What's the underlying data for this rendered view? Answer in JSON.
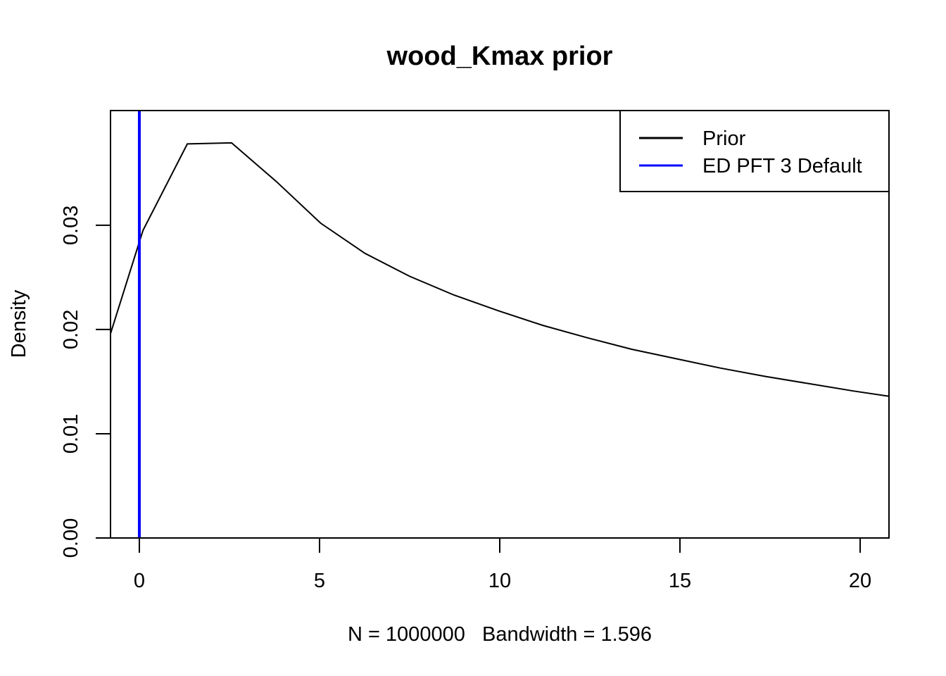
{
  "chart_data": {
    "type": "line",
    "title": "wood_Kmax prior",
    "xlabel": "N = 1000000   Bandwidth = 1.596",
    "ylabel": "Density",
    "xlim": [
      -0.8,
      20.8
    ],
    "ylim": [
      0,
      0.041
    ],
    "x_ticks": [
      0,
      5,
      10,
      15,
      20
    ],
    "x_tick_labels": [
      "0",
      "5",
      "10",
      "15",
      "20"
    ],
    "y_ticks": [
      0.0,
      0.01,
      0.02,
      0.03
    ],
    "y_tick_labels": [
      "0.00",
      "0.01",
      "0.02",
      "0.03"
    ],
    "grid": false,
    "legend_position": "top-right",
    "series": [
      {
        "name": "Prior",
        "color": "#000000",
        "x": [
          -0.8,
          0.1,
          1.33,
          2.56,
          3.8,
          5.03,
          6.26,
          7.5,
          8.73,
          9.96,
          11.19,
          12.43,
          13.66,
          14.89,
          16.12,
          17.36,
          18.59,
          19.82,
          20.8
        ],
        "y": [
          0.0196,
          0.0295,
          0.0378,
          0.0379,
          0.0342,
          0.0302,
          0.0273,
          0.0251,
          0.0233,
          0.0218,
          0.0204,
          0.0192,
          0.0181,
          0.0172,
          0.0163,
          0.0155,
          0.0148,
          0.0141,
          0.0136
        ]
      }
    ],
    "vlines": [
      {
        "name": "ED PFT 3 Default",
        "color": "#0000ff",
        "x": 0.0
      }
    ],
    "legend": [
      {
        "label": "Prior",
        "color": "#000000"
      },
      {
        "label": "ED PFT 3 Default",
        "color": "#0000ff"
      }
    ]
  }
}
